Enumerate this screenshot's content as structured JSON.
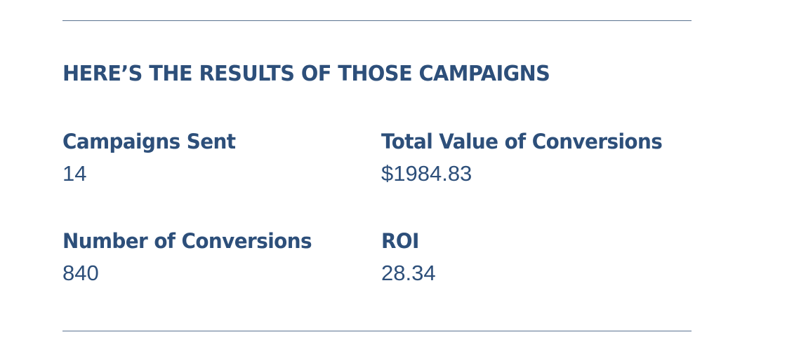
{
  "section": {
    "title": "HERE’S THE RESULTS OF THOSE CAMPAIGNS"
  },
  "stats": [
    {
      "label": "Campaigns Sent",
      "value": "14"
    },
    {
      "label": "Total Value of Conversions",
      "value": "$1984.83"
    },
    {
      "label": "Number of Conversions",
      "value": "840"
    },
    {
      "label": "ROI",
      "value": "28.34"
    }
  ],
  "colors": {
    "text": "#2d4f7a",
    "rule": "#5a7390",
    "background": "#ffffff"
  }
}
